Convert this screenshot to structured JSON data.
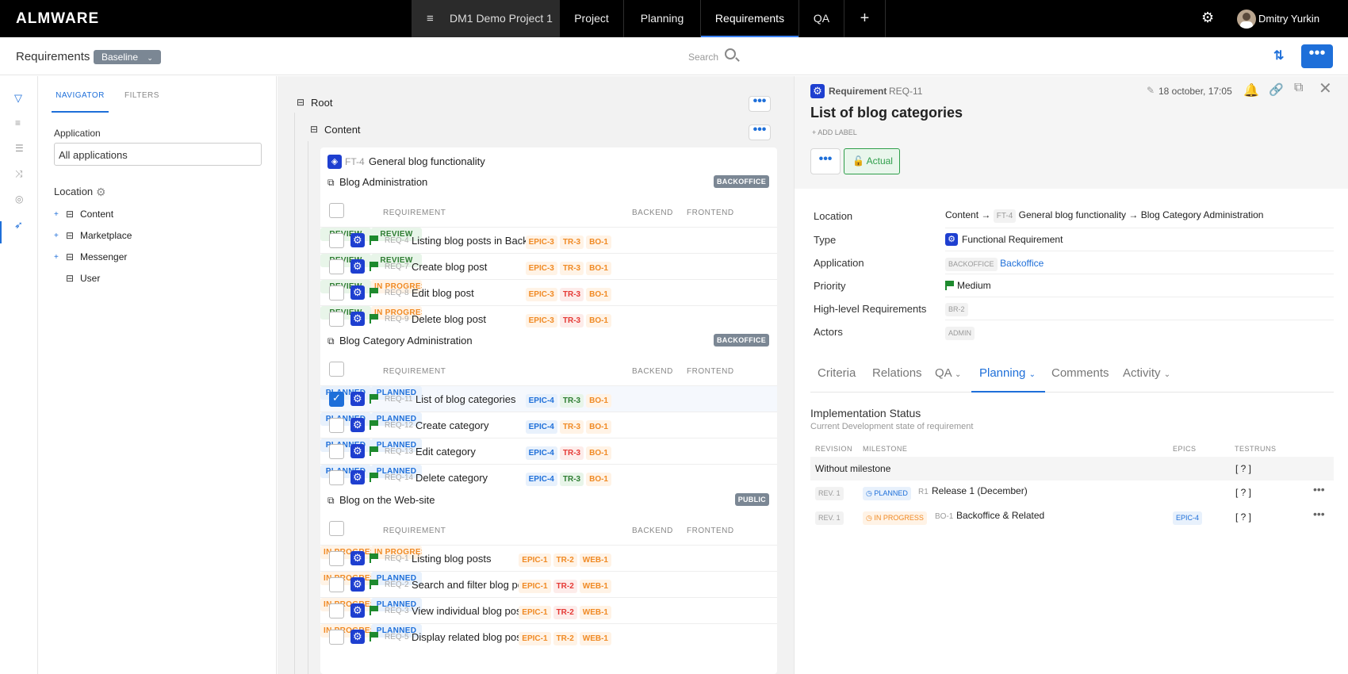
{
  "topbar": {
    "logo": "ALMWARE",
    "project": "DM1 Demo Project 1",
    "tabs": [
      "Project",
      "Planning",
      "Requirements",
      "QA"
    ],
    "active_tab": "Requirements",
    "user": "Dmitry Yurkin"
  },
  "subbar": {
    "title": "Requirements",
    "baseline": "Baseline",
    "search_placeholder": "Search"
  },
  "navigator": {
    "tabs": [
      "NAVIGATOR",
      "FILTERS"
    ],
    "application_label": "Application",
    "application_value": "All applications",
    "location_label": "Location",
    "tree": [
      "Content",
      "Marketplace",
      "Messenger",
      "User"
    ]
  },
  "center": {
    "root": "Root",
    "content": "Content",
    "feature_id": "FT-4",
    "feature_name": "General blog functionality",
    "col_requirement": "REQUIREMENT",
    "col_backend": "BACKEND",
    "col_frontend": "FRONTEND",
    "groups": [
      {
        "name": "Blog Administration",
        "badge": "BACKOFFICE",
        "rows": [
          {
            "id": "REQ-4",
            "name": "Listing blog posts in Backoffice",
            "tags": [
              [
                "EPIC-3",
                "o"
              ],
              [
                "TR-3",
                "o"
              ],
              [
                "BO-1",
                "o"
              ]
            ],
            "backend": "REVIEW",
            "frontend": "REVIEW",
            "checked": false
          },
          {
            "id": "REQ-7",
            "name": "Create blog post",
            "tags": [
              [
                "EPIC-3",
                "o"
              ],
              [
                "TR-3",
                "o"
              ],
              [
                "BO-1",
                "o"
              ]
            ],
            "backend": "REVIEW",
            "frontend": "REVIEW",
            "checked": false
          },
          {
            "id": "REQ-8",
            "name": "Edit blog post",
            "tags": [
              [
                "EPIC-3",
                "o"
              ],
              [
                "TR-3",
                "r"
              ],
              [
                "BO-1",
                "o"
              ]
            ],
            "backend": "REVIEW",
            "frontend": "IN PROGRESS",
            "checked": false
          },
          {
            "id": "REQ-9",
            "name": "Delete blog post",
            "tags": [
              [
                "EPIC-3",
                "o"
              ],
              [
                "TR-3",
                "r"
              ],
              [
                "BO-1",
                "o"
              ]
            ],
            "backend": "REVIEW",
            "frontend": "IN PROGRESS",
            "checked": false
          }
        ]
      },
      {
        "name": "Blog Category Administration",
        "badge": "BACKOFFICE",
        "rows": [
          {
            "id": "REQ-11",
            "name": "List of blog categories",
            "tags": [
              [
                "EPIC-4",
                "b"
              ],
              [
                "TR-3",
                "g"
              ],
              [
                "BO-1",
                "o"
              ]
            ],
            "backend": "PLANNED",
            "frontend": "PLANNED",
            "checked": true
          },
          {
            "id": "REQ-12",
            "name": "Create category",
            "tags": [
              [
                "EPIC-4",
                "b"
              ],
              [
                "TR-3",
                "o"
              ],
              [
                "BO-1",
                "o"
              ]
            ],
            "backend": "PLANNED",
            "frontend": "PLANNED",
            "checked": false
          },
          {
            "id": "REQ-13",
            "name": "Edit category",
            "tags": [
              [
                "EPIC-4",
                "b"
              ],
              [
                "TR-3",
                "r"
              ],
              [
                "BO-1",
                "o"
              ]
            ],
            "backend": "PLANNED",
            "frontend": "PLANNED",
            "checked": false
          },
          {
            "id": "REQ-14",
            "name": "Delete category",
            "tags": [
              [
                "EPIC-4",
                "b"
              ],
              [
                "TR-3",
                "g"
              ],
              [
                "BO-1",
                "o"
              ]
            ],
            "backend": "PLANNED",
            "frontend": "PLANNED",
            "checked": false
          }
        ]
      },
      {
        "name": "Blog on the Web-site",
        "badge": "PUBLIC",
        "rows": [
          {
            "id": "REQ-1",
            "name": "Listing blog posts",
            "tags": [
              [
                "EPIC-1",
                "o"
              ],
              [
                "TR-2",
                "o"
              ],
              [
                "WEB-1",
                "o"
              ]
            ],
            "backend": "IN PROGRESS",
            "frontend": "IN PROGRESS",
            "checked": false
          },
          {
            "id": "REQ-2",
            "name": "Search and filter blog posts",
            "tags": [
              [
                "EPIC-1",
                "o"
              ],
              [
                "TR-2",
                "r"
              ],
              [
                "WEB-1",
                "o"
              ]
            ],
            "backend": "IN PROGRESS",
            "frontend": "PLANNED",
            "checked": false
          },
          {
            "id": "REQ-3",
            "name": "View individual blog post",
            "tags": [
              [
                "EPIC-1",
                "o"
              ],
              [
                "TR-2",
                "r"
              ],
              [
                "WEB-1",
                "o"
              ]
            ],
            "backend": "IN PROGRESS",
            "frontend": "PLANNED",
            "checked": false
          },
          {
            "id": "REQ-5",
            "name": "Display related blog posts",
            "tags": [
              [
                "EPIC-1",
                "o"
              ],
              [
                "TR-2",
                "o"
              ],
              [
                "WEB-1",
                "o"
              ]
            ],
            "backend": "IN PROGRESS",
            "frontend": "PLANNED",
            "checked": false
          }
        ]
      }
    ]
  },
  "detail": {
    "kind": "Requirement",
    "id": "REQ-11",
    "date": "18 october, 17:05",
    "title": "List of blog categories",
    "add_label": "+ ADD LABEL",
    "status": "Actual",
    "props": {
      "location_label": "Location",
      "location_a": "Content",
      "location_arrow": "→",
      "location_ft": "FT-4",
      "location_b": "General blog functionality",
      "location_c": "Blog Category Administration",
      "type_label": "Type",
      "type_value": "Functional Requirement",
      "application_label": "Application",
      "application_tag": "BACKOFFICE",
      "application_value": "Backoffice",
      "priority_label": "Priority",
      "priority_value": "Medium",
      "hlr_label": "High-level Requirements",
      "hlr_value": "BR-2",
      "actors_label": "Actors",
      "actors_value": "ADMIN"
    },
    "tabs": [
      "Criteria",
      "Relations",
      "QA",
      "Planning",
      "Comments",
      "Activity"
    ],
    "active_tab": "Planning",
    "impl_title": "Implementation Status",
    "impl_subtitle": "Current Development state of requirement",
    "impl_cols": [
      "REVISION",
      "MILESTONE",
      "EPICS",
      "TESTRUNS"
    ],
    "impl_rows": [
      {
        "rev": "",
        "status": "",
        "code": "",
        "milestone": "Without milestone",
        "epic": "",
        "testruns": "[ ? ]"
      },
      {
        "rev": "REV. 1",
        "status": "PLANNED",
        "code": "R1",
        "milestone": "Release 1 (December)",
        "epic": "",
        "testruns": "[ ? ]"
      },
      {
        "rev": "REV. 1",
        "status": "IN PROGRESS",
        "code": "BO-1",
        "milestone": "Backoffice & Related",
        "epic": "EPIC-4",
        "testruns": "[ ? ]"
      }
    ]
  },
  "colors": {
    "accent": "#1e6fd9",
    "reqicon": "#1e3fd0",
    "flag": "#1e8a2e",
    "orange": "#f08a24",
    "red": "#e53935",
    "green": "#2e7d32"
  }
}
